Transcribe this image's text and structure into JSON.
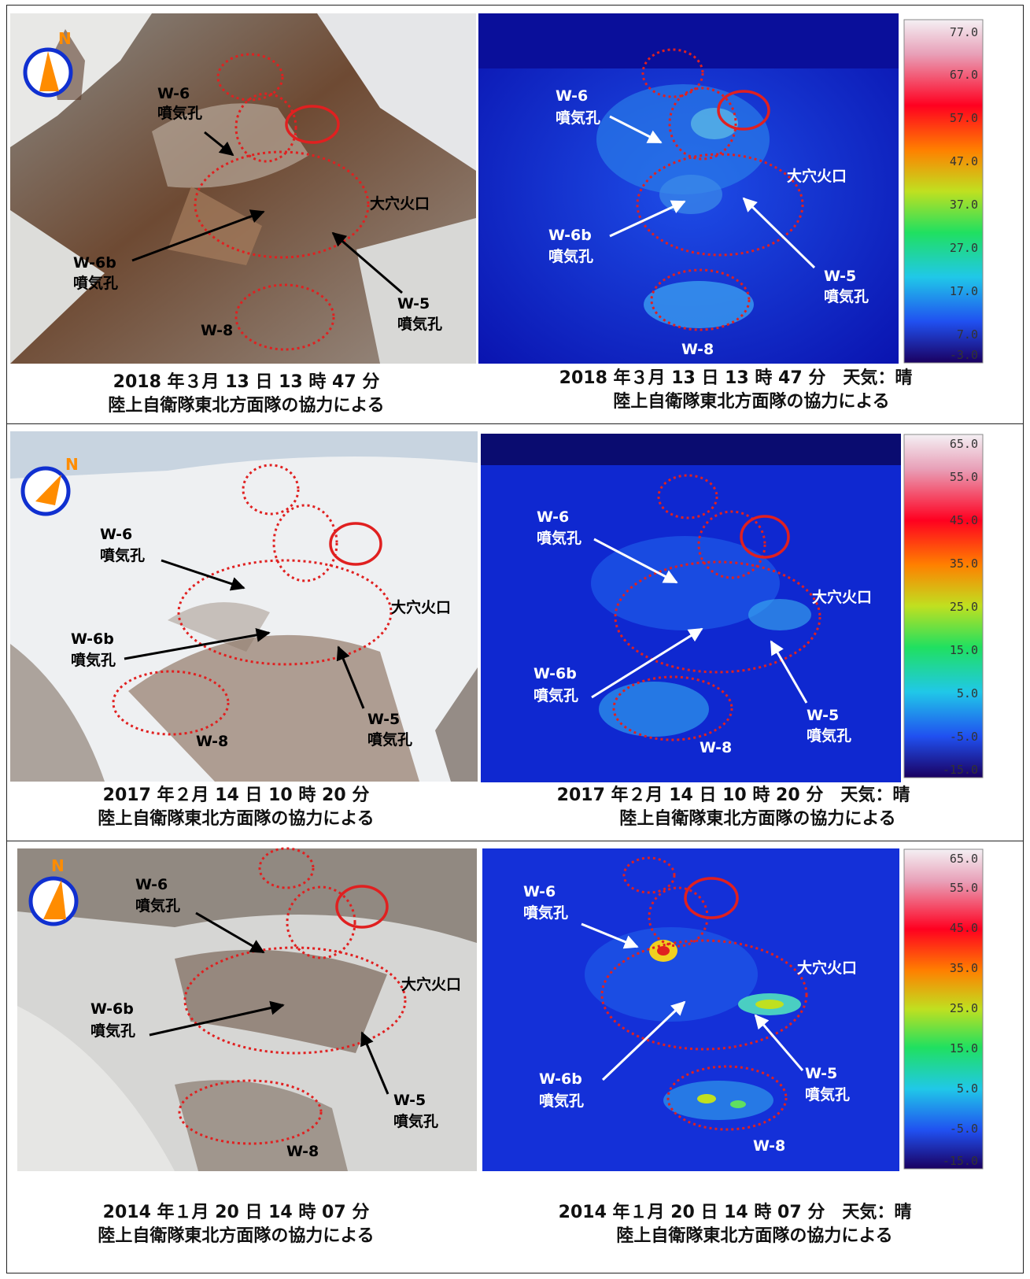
{
  "rows": [
    {
      "photo_caption": [
        "2018 年３月 13 日 13 時 47 分",
        "陸上自衛隊東北方面隊の協力による"
      ],
      "thermal_caption": [
        "2018 年３月 13 日 13 時 47 分　天気：晴",
        "陸上自衛隊東北方面隊の協力による"
      ],
      "scale_ticks": [
        "77.0",
        "67.0",
        "57.0",
        "47.0",
        "37.0",
        "27.0",
        "17.0",
        "7.0",
        "-3.0"
      ]
    },
    {
      "photo_caption": [
        "2017 年２月 14 日 10 時 20 分",
        "陸上自衛隊東北方面隊の協力による"
      ],
      "thermal_caption": [
        "2017 年２月 14 日 10 時 20 分　天気：晴",
        "陸上自衛隊東北方面隊の協力による"
      ],
      "scale_ticks": [
        "65.0",
        "55.0",
        "45.0",
        "35.0",
        "25.0",
        "15.0",
        "5.0",
        "-5.0",
        "-15.0"
      ]
    },
    {
      "photo_caption": [
        "2014 年１月 20 日 14 時 07 分",
        "陸上自衛隊東北方面隊の協力による"
      ],
      "thermal_caption": [
        "2014 年１月 20 日 14 時 07 分　天気：晴",
        "陸上自衛隊東北方面隊の協力による"
      ],
      "scale_ticks": [
        "65.0",
        "55.0",
        "45.0",
        "35.0",
        "25.0",
        "15.0",
        "5.0",
        "-5.0",
        "-15.0"
      ]
    }
  ],
  "labels": {
    "north": "N",
    "w6": "W-6",
    "w6b": "W-6b",
    "w5": "W-5",
    "w8": "W-8",
    "vent": "噴気孔",
    "crater": "大穴火口"
  },
  "colors": {
    "marker_red": "#e02020",
    "compass_blue": "#1030d0",
    "compass_orange": "#ff8c00"
  }
}
